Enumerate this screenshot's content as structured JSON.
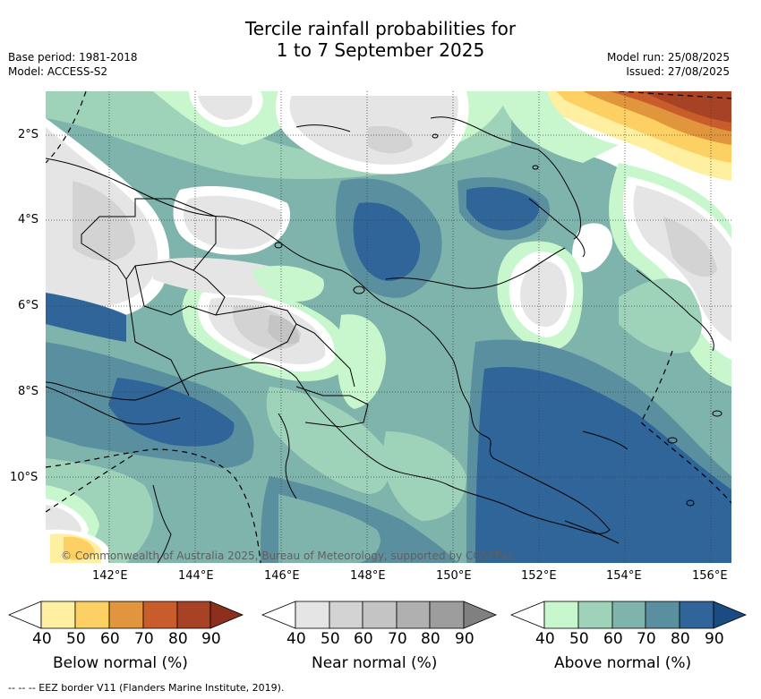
{
  "title_line1": "Tercile rainfall probabilities for",
  "title_line2": "1 to 7 September 2025",
  "meta_left": [
    "Base period: 1981-2018",
    "Model: ACCESS-S2"
  ],
  "meta_right": [
    "Model run: 25/08/2025",
    "Issued: 27/08/2025"
  ],
  "lat_labels": [
    "2°S",
    "4°S",
    "6°S",
    "8°S",
    "10°S"
  ],
  "lon_labels": [
    "142°E",
    "144°E",
    "146°E",
    "148°E",
    "150°E",
    "152°E",
    "154°E",
    "156°E"
  ],
  "copyright": "© Commonwealth of Australia 2025, Bureau of Meteorology, supported by COSPPac",
  "colorbars": [
    {
      "title": "Below normal (%)",
      "ticks": [
        "40",
        "50",
        "60",
        "70",
        "80",
        "90"
      ],
      "colors": [
        "#fef0a0",
        "#fcd063",
        "#e1953d",
        "#c85d2b",
        "#a84225",
        "#8c2f1c"
      ]
    },
    {
      "title": "Near normal (%)",
      "ticks": [
        "40",
        "50",
        "60",
        "70",
        "80",
        "90"
      ],
      "colors": [
        "#e5e5e5",
        "#d3d3d3",
        "#c4c4c4",
        "#b0b0b0",
        "#9d9d9d",
        "#808080"
      ]
    },
    {
      "title": "Above normal (%)",
      "ticks": [
        "40",
        "50",
        "60",
        "70",
        "80",
        "90"
      ],
      "colors": [
        "#c9f7cd",
        "#9fd3b9",
        "#7eb4ab",
        "#5a8fa0",
        "#2f6598",
        "#1b4b83"
      ]
    }
  ],
  "footnote": "--  --  -- EEZ border V11 (Flanders Marine Institute, 2019)."
}
